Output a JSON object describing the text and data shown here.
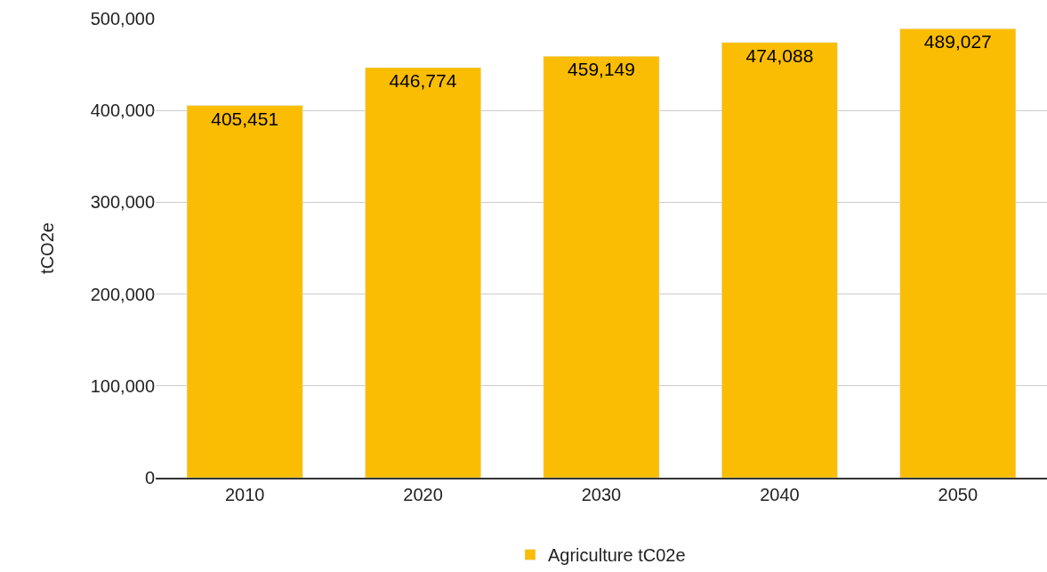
{
  "chart_data": {
    "type": "bar",
    "ylabel": "tCO2e",
    "categories": [
      "2010",
      "2020",
      "2030",
      "2040",
      "2050"
    ],
    "series": [
      {
        "name": "Agriculture tC02e",
        "color": "#fabd03",
        "values": [
          405451,
          446774,
          459149,
          474088,
          489027
        ],
        "value_labels": [
          "405,451",
          "446,774",
          "459,149",
          "474,088",
          "489,027"
        ]
      }
    ],
    "ylim": [
      0,
      500000
    ],
    "yticks": [
      {
        "value": 0,
        "label": "0"
      },
      {
        "value": 100000,
        "label": "100,000"
      },
      {
        "value": 200000,
        "label": "200,000"
      },
      {
        "value": 300000,
        "label": "300,000"
      },
      {
        "value": 400000,
        "label": "400,000"
      },
      {
        "value": 500000,
        "label": "500,000"
      }
    ],
    "grid": "y",
    "legend": "bottom"
  }
}
